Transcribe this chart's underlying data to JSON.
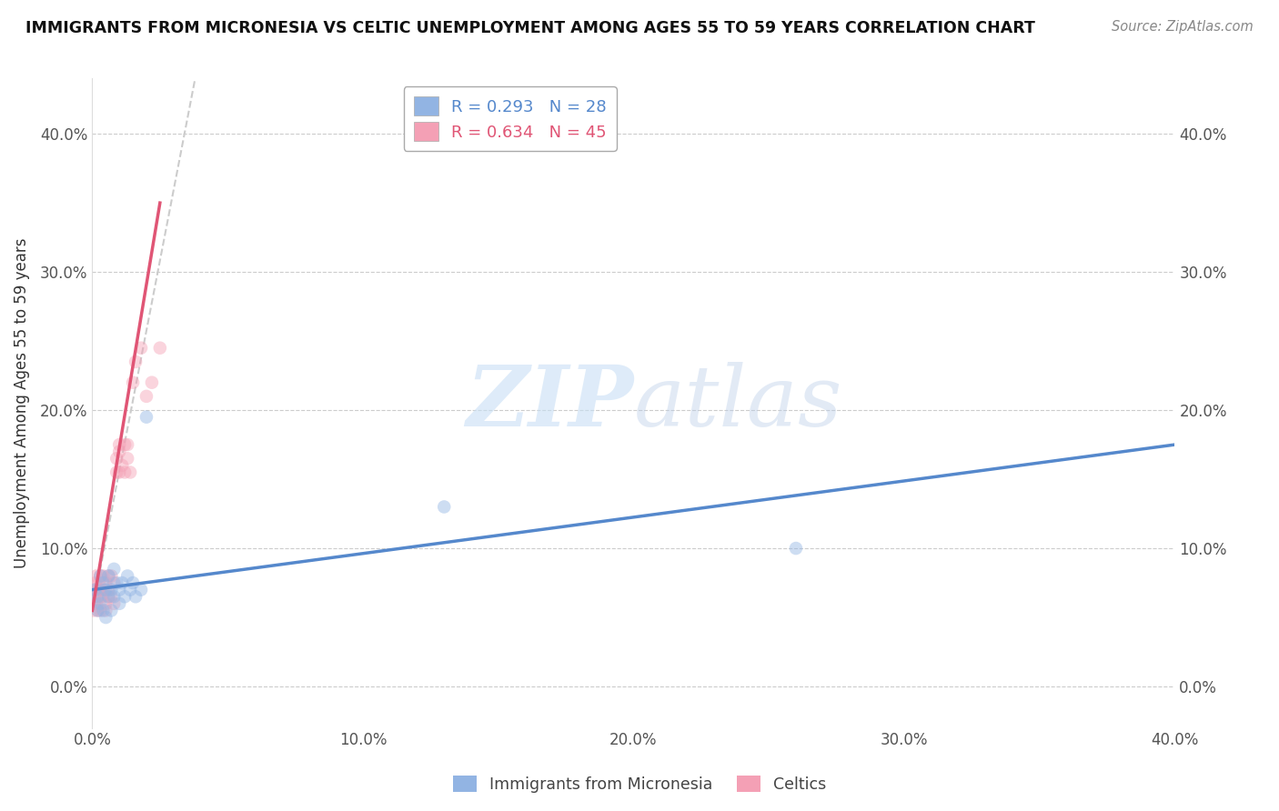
{
  "title": "IMMIGRANTS FROM MICRONESIA VS CELTIC UNEMPLOYMENT AMONG AGES 55 TO 59 YEARS CORRELATION CHART",
  "source": "Source: ZipAtlas.com",
  "ylabel": "Unemployment Among Ages 55 to 59 years",
  "yticks": [
    "0.0%",
    "10.0%",
    "20.0%",
    "30.0%",
    "40.0%"
  ],
  "ytick_vals": [
    0.0,
    0.1,
    0.2,
    0.3,
    0.4
  ],
  "xtick_vals": [
    0.0,
    0.1,
    0.2,
    0.3,
    0.4
  ],
  "xtick_labels": [
    "0.0%",
    "10.0%",
    "20.0%",
    "30.0%",
    "40.0%"
  ],
  "xlim": [
    0.0,
    0.4
  ],
  "ylim": [
    -0.03,
    0.44
  ],
  "legend1_label": "R = 0.293   N = 28",
  "legend2_label": "R = 0.634   N = 45",
  "micronesia_color": "#92b4e3",
  "celtics_color": "#f4a0b5",
  "trendline_micronesia_color": "#5588cc",
  "trendline_celtics_color": "#e05575",
  "scatter_micronesia_x": [
    0.001,
    0.002,
    0.002,
    0.003,
    0.003,
    0.004,
    0.004,
    0.005,
    0.005,
    0.006,
    0.006,
    0.007,
    0.007,
    0.008,
    0.008,
    0.009,
    0.01,
    0.01,
    0.011,
    0.012,
    0.013,
    0.014,
    0.015,
    0.016,
    0.018,
    0.13,
    0.26,
    0.02
  ],
  "scatter_micronesia_y": [
    0.07,
    0.065,
    0.055,
    0.08,
    0.06,
    0.075,
    0.055,
    0.07,
    0.05,
    0.065,
    0.08,
    0.07,
    0.055,
    0.065,
    0.085,
    0.075,
    0.07,
    0.06,
    0.075,
    0.065,
    0.08,
    0.07,
    0.075,
    0.065,
    0.07,
    0.13,
    0.1,
    0.195
  ],
  "scatter_celtics_x": [
    0.0005,
    0.0008,
    0.001,
    0.001,
    0.0012,
    0.0015,
    0.0015,
    0.002,
    0.002,
    0.002,
    0.0025,
    0.003,
    0.003,
    0.003,
    0.003,
    0.004,
    0.004,
    0.004,
    0.005,
    0.005,
    0.005,
    0.006,
    0.006,
    0.006,
    0.007,
    0.007,
    0.008,
    0.008,
    0.009,
    0.009,
    0.01,
    0.01,
    0.01,
    0.011,
    0.012,
    0.012,
    0.013,
    0.013,
    0.014,
    0.015,
    0.016,
    0.018,
    0.02,
    0.022,
    0.025
  ],
  "scatter_celtics_y": [
    0.055,
    0.06,
    0.065,
    0.07,
    0.075,
    0.06,
    0.08,
    0.055,
    0.065,
    0.07,
    0.075,
    0.065,
    0.07,
    0.08,
    0.055,
    0.065,
    0.07,
    0.08,
    0.06,
    0.075,
    0.055,
    0.065,
    0.08,
    0.07,
    0.065,
    0.08,
    0.075,
    0.06,
    0.155,
    0.165,
    0.155,
    0.17,
    0.175,
    0.16,
    0.175,
    0.155,
    0.175,
    0.165,
    0.155,
    0.22,
    0.235,
    0.245,
    0.21,
    0.22,
    0.245
  ],
  "trendline_mic_x0": 0.0,
  "trendline_mic_x1": 0.4,
  "trendline_mic_y0": 0.07,
  "trendline_mic_y1": 0.175,
  "trendline_cel_x0": 0.0,
  "trendline_cel_x1": 0.025,
  "trendline_cel_y0": 0.055,
  "trendline_cel_y1": 0.35,
  "trendline_cel_dash_x0": 0.0,
  "trendline_cel_dash_x1": 0.038,
  "trendline_cel_dash_y0": 0.055,
  "trendline_cel_dash_y1": 0.44,
  "watermark_zip": "ZIP",
  "watermark_atlas": "atlas",
  "dot_size": 110,
  "dot_alpha": 0.45
}
